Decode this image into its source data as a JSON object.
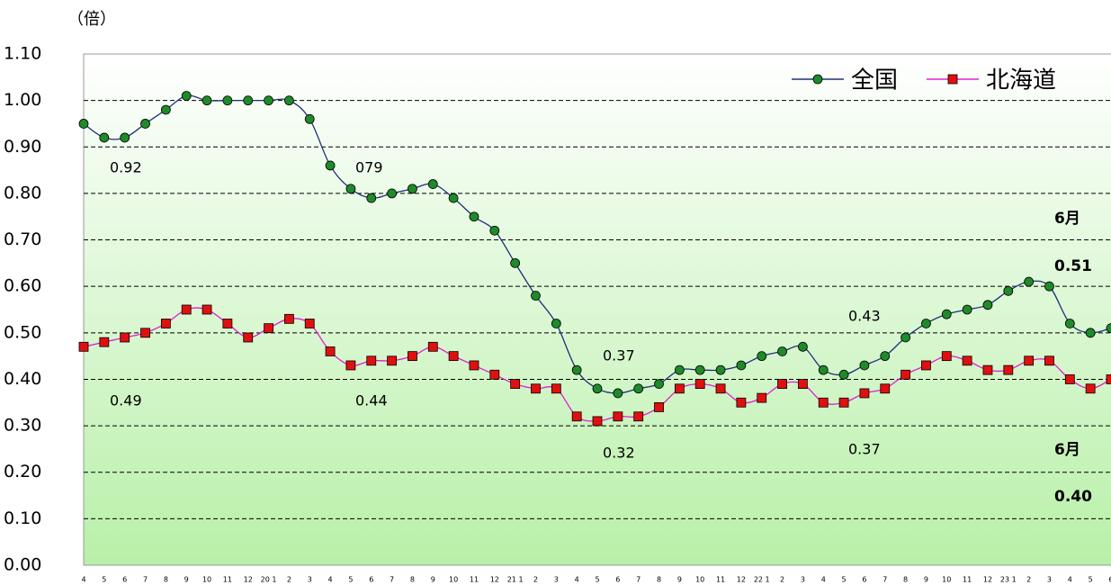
{
  "chart_data": {
    "type": "line",
    "y_label": "（倍）",
    "categories": [
      "4",
      "5",
      "6",
      "7",
      "8",
      "9",
      "10",
      "11",
      "12",
      "20 1",
      "2",
      "3",
      "4",
      "5",
      "6",
      "7",
      "8",
      "9",
      "10",
      "11",
      "12",
      "21 1",
      "2",
      "3",
      "4",
      "5",
      "6",
      "7",
      "8",
      "9",
      "10",
      "11",
      "12",
      "22 1",
      "2",
      "3",
      "4",
      "5",
      "6",
      "7",
      "8",
      "9",
      "10",
      "11",
      "12",
      "23 1",
      "2",
      "3",
      "4",
      "5",
      "6"
    ],
    "series": [
      {
        "name": "全国",
        "color": "#1f2f7a",
        "marker": "circle",
        "marker_color": "#1f8a2a",
        "values": [
          0.95,
          0.92,
          0.92,
          0.95,
          0.98,
          1.01,
          1.0,
          1.0,
          1.0,
          1.0,
          1.0,
          0.96,
          0.86,
          0.81,
          0.79,
          0.8,
          0.81,
          0.82,
          0.79,
          0.75,
          0.72,
          0.65,
          0.58,
          0.52,
          0.42,
          0.38,
          0.37,
          0.38,
          0.39,
          0.42,
          0.42,
          0.42,
          0.43,
          0.45,
          0.46,
          0.47,
          0.42,
          0.41,
          0.43,
          0.45,
          0.49,
          0.52,
          0.54,
          0.55,
          0.56,
          0.59,
          0.61,
          0.6,
          0.52,
          0.5,
          0.51
        ]
      },
      {
        "name": "北海道",
        "color": "#e020d0",
        "marker": "square",
        "marker_color": "#e01010",
        "values": [
          0.47,
          0.48,
          0.49,
          0.5,
          0.52,
          0.55,
          0.55,
          0.52,
          0.49,
          0.51,
          0.53,
          0.52,
          0.46,
          0.43,
          0.44,
          0.44,
          0.45,
          0.47,
          0.45,
          0.43,
          0.41,
          0.39,
          0.38,
          0.38,
          0.32,
          0.31,
          0.32,
          0.32,
          0.34,
          0.38,
          0.39,
          0.38,
          0.35,
          0.36,
          0.39,
          0.39,
          0.35,
          0.35,
          0.37,
          0.38,
          0.41,
          0.43,
          0.45,
          0.44,
          0.42,
          0.42,
          0.44,
          0.44,
          0.4,
          0.38,
          0.4
        ]
      }
    ],
    "ylim": [
      0,
      1.1
    ],
    "yticks": [
      {
        "value": 0,
        "label": "0.00"
      },
      {
        "value": 0.1,
        "label": "0.10"
      },
      {
        "value": 0.2,
        "label": "0.20"
      },
      {
        "value": 0.3,
        "label": "0.30"
      },
      {
        "value": 0.4,
        "label": "0.40"
      },
      {
        "value": 0.5,
        "label": "0.50"
      },
      {
        "value": 0.6,
        "label": "0.60"
      },
      {
        "value": 0.7,
        "label": "0.70"
      },
      {
        "value": 0.8,
        "label": "0.80"
      },
      {
        "value": 0.9,
        "label": "0.90"
      },
      {
        "value": 1.0,
        "label": "1.00"
      },
      {
        "value": 1.1,
        "label": "1.10"
      }
    ],
    "grid": true,
    "smooth": true,
    "legend": "top-right",
    "annotations": [
      "0.92",
      "079",
      "0.37",
      "0.43",
      "0.49",
      "0.44",
      "0.32",
      "0.37",
      "6月",
      "0.51",
      "6月",
      "0.40"
    ]
  }
}
